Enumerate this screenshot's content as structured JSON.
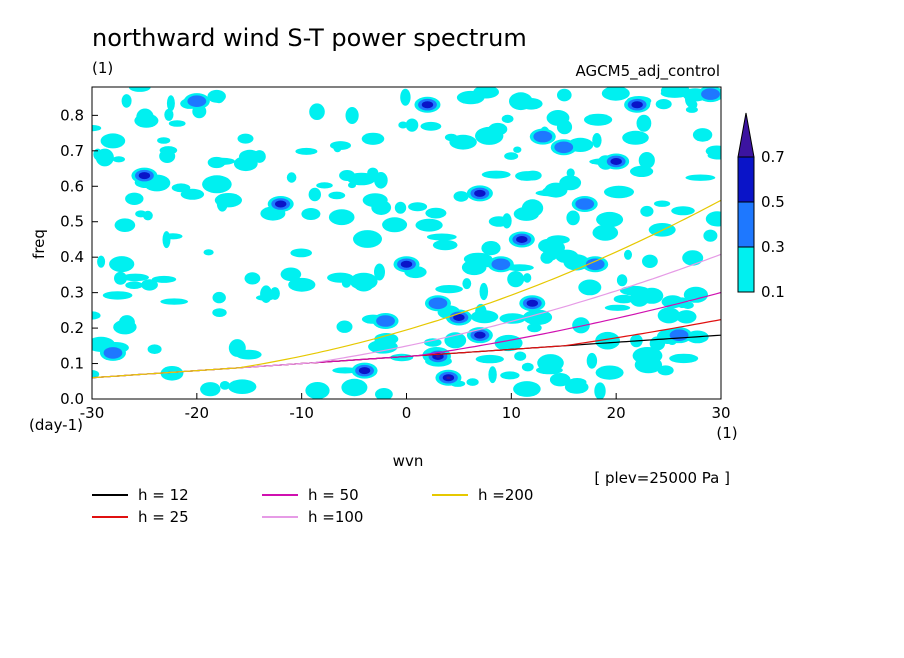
{
  "chart_data": {
    "type": "heatmap",
    "title": "northward wind S-T power spectrum",
    "subtitle_left": "(1)",
    "subtitle_right": "AGCM5_adj_control",
    "xlabel": "wvn",
    "ylabel": "freq",
    "x_unit_label": "(1)",
    "y_unit_label": "(day-1)",
    "xlim": [
      -30,
      30
    ],
    "ylim": [
      0,
      0.88
    ],
    "x_ticks": [
      -30,
      -20,
      -10,
      0,
      10,
      20,
      30
    ],
    "x_tick_labels": [
      "-30",
      "-20",
      "-10",
      "0",
      "10",
      "20",
      "30"
    ],
    "y_ticks": [
      0.0,
      0.1,
      0.2,
      0.3,
      0.4,
      0.5,
      0.6,
      0.7,
      0.8
    ],
    "y_tick_labels": [
      "0.0",
      "0.1",
      "0.2",
      "0.3",
      "0.4",
      "0.5",
      "0.6",
      "0.7",
      "0.8"
    ],
    "plev_note": "[ plev=25000 Pa ]",
    "colorbar": {
      "levels": [
        0.1,
        0.3,
        0.5,
        0.7
      ],
      "labels": [
        "0.1",
        "0.3",
        "0.5",
        "0.7"
      ],
      "colors": [
        "#00f0f0",
        "#1e78ff",
        "#0a14c8",
        "#3c14a0"
      ]
    },
    "contour_patches": [
      {
        "x": -25,
        "y": 0.63,
        "level": 3
      },
      {
        "x": -12,
        "y": 0.55,
        "level": 3
      },
      {
        "x": 0,
        "y": 0.38,
        "level": 3
      },
      {
        "x": 2,
        "y": 0.83,
        "level": 3
      },
      {
        "x": 3,
        "y": 0.12,
        "level": 4
      },
      {
        "x": 4,
        "y": 0.06,
        "level": 4
      },
      {
        "x": 5,
        "y": 0.23,
        "level": 3
      },
      {
        "x": 7,
        "y": 0.18,
        "level": 3
      },
      {
        "x": 7,
        "y": 0.58,
        "level": 3
      },
      {
        "x": 9,
        "y": 0.38,
        "level": 2
      },
      {
        "x": 11,
        "y": 0.45,
        "level": 3
      },
      {
        "x": 13,
        "y": 0.74,
        "level": 2
      },
      {
        "x": 15,
        "y": 0.71,
        "level": 2
      },
      {
        "x": 17,
        "y": 0.55,
        "level": 2
      },
      {
        "x": 20,
        "y": 0.67,
        "level": 3
      },
      {
        "x": 18,
        "y": 0.38,
        "level": 2
      },
      {
        "x": 22,
        "y": 0.83,
        "level": 3
      },
      {
        "x": -4,
        "y": 0.08,
        "level": 3
      },
      {
        "x": -2,
        "y": 0.22,
        "level": 2
      },
      {
        "x": -20,
        "y": 0.84,
        "level": 2
      },
      {
        "x": 12,
        "y": 0.27,
        "level": 3
      },
      {
        "x": 26,
        "y": 0.18,
        "level": 2
      },
      {
        "x": 3,
        "y": 0.27,
        "level": 2
      },
      {
        "x": -28,
        "y": 0.13,
        "level": 2
      },
      {
        "x": 29,
        "y": 0.86,
        "level": 2
      }
    ],
    "series": [
      {
        "name": "h = 12",
        "h": 12,
        "color": "#000000"
      },
      {
        "name": "h = 25",
        "h": 25,
        "color": "#e01010"
      },
      {
        "name": "h = 50",
        "h": 50,
        "color": "#d010b0"
      },
      {
        "name": "h =100",
        "h": 100,
        "color": "#e69be6"
      },
      {
        "name": "h =200",
        "h": 200,
        "color": "#e6c800"
      }
    ]
  }
}
